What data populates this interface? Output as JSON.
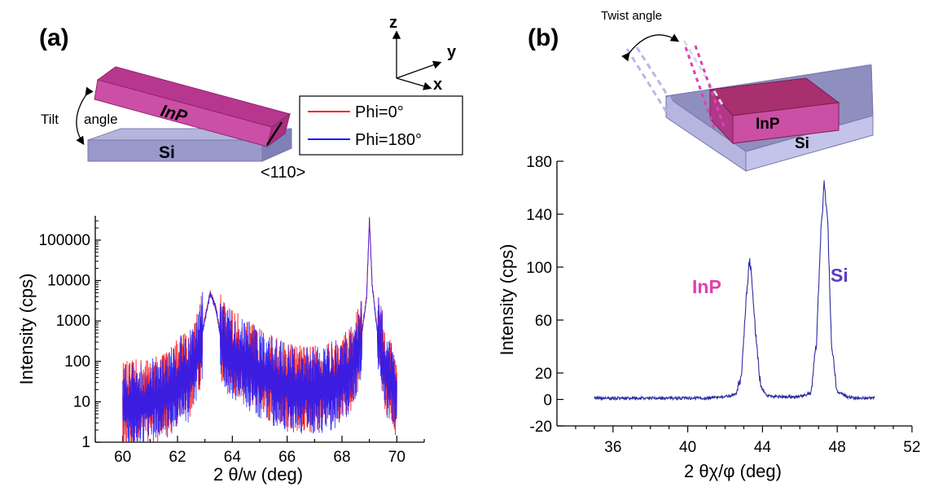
{
  "panel_a": {
    "label": "(a)",
    "tilt_word": "Tilt",
    "angle_word": "angle",
    "inp_label": "InP",
    "si_label": "Si",
    "direction_label": "<110>",
    "axes": {
      "z": "z",
      "y": "y",
      "x": "x"
    }
  },
  "panel_b": {
    "label": "(b)",
    "twist_label": "Twist angle",
    "inp_block_label": "InP",
    "si_block_label": "Si",
    "inp_peak_label": "InP",
    "si_peak_label": "Si"
  },
  "colors": {
    "phi0": "#ff1a1a",
    "phi180": "#1a1aff",
    "chart_b_line": "#2b2ba0",
    "inp_block": "#c8419a",
    "si_block": "#8f8fc4",
    "inp_peak_label": "#e040b0",
    "si_peak_label": "#5b3bbf"
  },
  "chart_data": [
    {
      "type": "line",
      "panel": "(a)",
      "xlabel": "2 θ/w (deg)",
      "ylabel": "Intensity (cps)",
      "xlim": [
        59,
        71
      ],
      "ylim": [
        1,
        400000
      ],
      "yscale": "log",
      "xticks": [
        60,
        62,
        64,
        66,
        68,
        70
      ],
      "yticks": [
        1,
        10,
        100,
        1000,
        10000,
        100000
      ],
      "ytick_labels": [
        "1",
        "10",
        "100",
        "1000",
        "10000",
        "100000"
      ],
      "legend_position": "top-right",
      "series": [
        {
          "name": "Phi=0°",
          "color": "#ff1a1a",
          "x": [
            60.0,
            60.5,
            61.0,
            61.5,
            62.0,
            62.2,
            62.4,
            62.6,
            62.8,
            63.0,
            63.2,
            63.4,
            63.6,
            63.8,
            64.0,
            64.5,
            65.0,
            65.5,
            66.0,
            66.5,
            67.0,
            67.5,
            68.0,
            68.4,
            68.7,
            68.9,
            69.0,
            69.1,
            69.3,
            69.6,
            70.0
          ],
          "y": [
            8,
            9,
            11,
            14,
            28,
            50,
            38,
            110,
            200,
            1200,
            5200,
            2200,
            350,
            190,
            160,
            90,
            55,
            35,
            25,
            20,
            20,
            24,
            35,
            80,
            400,
            4000,
            350000,
            8000,
            500,
            60,
            15
          ]
        },
        {
          "name": "Phi=180°",
          "color": "#1a1aff",
          "x": [
            60.0,
            60.5,
            61.0,
            61.5,
            62.0,
            62.2,
            62.4,
            62.6,
            62.8,
            63.0,
            63.2,
            63.4,
            63.6,
            63.8,
            64.0,
            64.5,
            65.0,
            65.5,
            66.0,
            66.5,
            67.0,
            67.5,
            68.0,
            68.4,
            68.7,
            68.9,
            69.0,
            69.1,
            69.3,
            69.6,
            70.0
          ],
          "y": [
            7,
            8,
            10,
            13,
            25,
            45,
            35,
            100,
            180,
            1100,
            4800,
            2000,
            320,
            175,
            150,
            85,
            50,
            32,
            23,
            19,
            19,
            22,
            33,
            75,
            380,
            3800,
            330000,
            7500,
            470,
            55,
            14
          ]
        }
      ]
    },
    {
      "type": "line",
      "panel": "(b)",
      "xlabel": "2 θχ/φ (deg)",
      "ylabel": "Intensity (cps)",
      "xlim": [
        33,
        52
      ],
      "ylim": [
        -20,
        180
      ],
      "xticks": [
        36,
        40,
        44,
        48,
        52
      ],
      "yticks": [
        -20,
        0,
        20,
        60,
        100,
        140,
        180
      ],
      "series": [
        {
          "color": "#2b2ba0",
          "x": [
            35.0,
            36.0,
            37.0,
            38.0,
            39.0,
            40.0,
            41.0,
            42.0,
            42.6,
            42.9,
            43.1,
            43.3,
            43.4,
            43.6,
            43.9,
            44.2,
            44.6,
            45.0,
            46.0,
            46.6,
            46.9,
            47.1,
            47.3,
            47.5,
            47.7,
            48.0,
            48.5,
            49.0,
            50.0
          ],
          "y": [
            1,
            1,
            1,
            1,
            1,
            1,
            1,
            2,
            4,
            20,
            70,
            105,
            98,
            55,
            10,
            3,
            2,
            2,
            2,
            5,
            45,
            120,
            162,
            130,
            40,
            6,
            2,
            1,
            1
          ]
        }
      ]
    }
  ]
}
